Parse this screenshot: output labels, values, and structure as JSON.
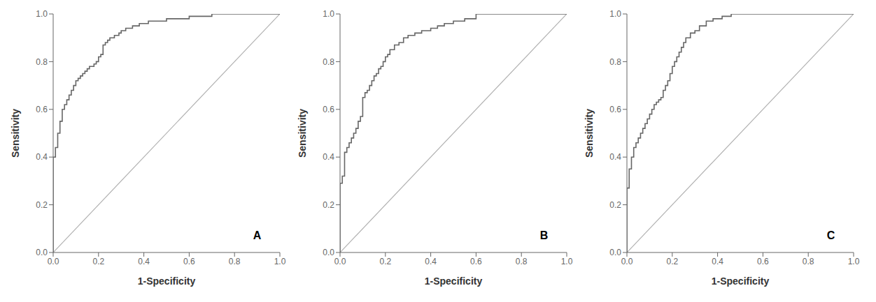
{
  "chart_data": [
    {
      "type": "line",
      "line_style": "step",
      "annotation": "A",
      "xlabel": "1-Specificity",
      "ylabel": "Sensitivity",
      "color": "#666666",
      "grid": false,
      "xlim": [
        0.0,
        1.0
      ],
      "ylim": [
        0.0,
        1.0
      ],
      "xticks": [
        {
          "value": 0.0,
          "label": "0.0"
        },
        0.2,
        0.4,
        0.6,
        0.8,
        {
          "value": 1.0,
          "label": "1.0"
        }
      ],
      "yticks": [
        {
          "value": 0.0,
          "label": "0.0"
        },
        0.2,
        0.4,
        0.6,
        0.8,
        {
          "value": 1.0,
          "label": "1.0"
        }
      ],
      "diagonal": {
        "x": [
          0,
          1
        ],
        "values": [
          0,
          1
        ],
        "color": "#b0b0b0"
      },
      "x": [
        0.0,
        0.0,
        0.0,
        0.01,
        0.01,
        0.02,
        0.02,
        0.03,
        0.03,
        0.04,
        0.04,
        0.05,
        0.06,
        0.07,
        0.08,
        0.09,
        0.1,
        0.11,
        0.12,
        0.13,
        0.14,
        0.15,
        0.16,
        0.17,
        0.18,
        0.19,
        0.2,
        0.2,
        0.21,
        0.22,
        0.22,
        0.23,
        0.24,
        0.25,
        0.26,
        0.27,
        0.28,
        0.29,
        0.3,
        0.32,
        0.35,
        0.38,
        0.42,
        0.46,
        0.5,
        0.55,
        0.6,
        0.65,
        0.7,
        0.75,
        0.8,
        0.85,
        0.88,
        1.0
      ],
      "values": [
        0.0,
        0.35,
        0.4,
        0.4,
        0.44,
        0.44,
        0.5,
        0.5,
        0.55,
        0.55,
        0.6,
        0.62,
        0.64,
        0.66,
        0.68,
        0.7,
        0.72,
        0.73,
        0.74,
        0.75,
        0.76,
        0.77,
        0.78,
        0.78,
        0.79,
        0.8,
        0.8,
        0.82,
        0.83,
        0.83,
        0.87,
        0.88,
        0.89,
        0.9,
        0.9,
        0.91,
        0.91,
        0.92,
        0.93,
        0.94,
        0.95,
        0.96,
        0.97,
        0.97,
        0.98,
        0.98,
        0.99,
        0.99,
        1.0,
        1.0,
        1.0,
        1.0,
        1.0,
        1.0
      ]
    },
    {
      "type": "line",
      "line_style": "step",
      "annotation": "B",
      "xlabel": "1-Specificity",
      "ylabel": "Sensitivity",
      "color": "#666666",
      "grid": false,
      "xlim": [
        0.0,
        1.0
      ],
      "ylim": [
        0.0,
        1.0
      ],
      "xticks": [
        {
          "value": 0.0,
          "label": "0.0"
        },
        0.2,
        0.4,
        0.6,
        0.8,
        {
          "value": 1.0,
          "label": "1.0"
        }
      ],
      "yticks": [
        {
          "value": 0.0,
          "label": "0.0"
        },
        0.2,
        0.4,
        0.6,
        0.8,
        {
          "value": 1.0,
          "label": "1.0"
        }
      ],
      "diagonal": {
        "x": [
          0,
          1
        ],
        "values": [
          0,
          1
        ],
        "color": "#b0b0b0"
      },
      "x": [
        0.0,
        0.0,
        0.0,
        0.01,
        0.01,
        0.02,
        0.02,
        0.03,
        0.04,
        0.05,
        0.06,
        0.07,
        0.08,
        0.09,
        0.1,
        0.1,
        0.11,
        0.12,
        0.13,
        0.14,
        0.15,
        0.16,
        0.17,
        0.18,
        0.19,
        0.2,
        0.21,
        0.22,
        0.24,
        0.26,
        0.28,
        0.3,
        0.33,
        0.36,
        0.4,
        0.43,
        0.46,
        0.5,
        0.55,
        0.58,
        0.6,
        0.65,
        0.7,
        0.8,
        0.9,
        1.0
      ],
      "values": [
        0.0,
        0.27,
        0.29,
        0.29,
        0.32,
        0.32,
        0.42,
        0.44,
        0.46,
        0.48,
        0.5,
        0.52,
        0.55,
        0.57,
        0.57,
        0.65,
        0.67,
        0.68,
        0.7,
        0.72,
        0.74,
        0.75,
        0.77,
        0.78,
        0.8,
        0.82,
        0.83,
        0.85,
        0.87,
        0.88,
        0.9,
        0.91,
        0.92,
        0.93,
        0.94,
        0.95,
        0.96,
        0.97,
        0.98,
        0.98,
        1.0,
        1.0,
        1.0,
        1.0,
        1.0,
        1.0
      ]
    },
    {
      "type": "line",
      "line_style": "step",
      "annotation": "C",
      "xlabel": "1-Specificity",
      "ylabel": "Sensitivity",
      "color": "#666666",
      "grid": false,
      "xlim": [
        0.0,
        1.0
      ],
      "ylim": [
        0.0,
        1.0
      ],
      "xticks": [
        {
          "value": 0.0,
          "label": "0.0"
        },
        0.2,
        0.4,
        0.6,
        0.8,
        {
          "value": 1.0,
          "label": "1.0"
        }
      ],
      "yticks": [
        {
          "value": 0.0,
          "label": "0.0"
        },
        0.2,
        0.4,
        0.6,
        0.8,
        {
          "value": 1.0,
          "label": "1.0"
        }
      ],
      "diagonal": {
        "x": [
          0,
          1
        ],
        "values": [
          0,
          1
        ],
        "color": "#b0b0b0"
      },
      "x": [
        0.0,
        0.0,
        0.0,
        0.01,
        0.01,
        0.02,
        0.02,
        0.03,
        0.03,
        0.04,
        0.05,
        0.06,
        0.07,
        0.08,
        0.09,
        0.1,
        0.11,
        0.12,
        0.13,
        0.14,
        0.15,
        0.16,
        0.17,
        0.18,
        0.19,
        0.2,
        0.21,
        0.22,
        0.23,
        0.24,
        0.25,
        0.26,
        0.28,
        0.3,
        0.32,
        0.35,
        0.38,
        0.42,
        0.46,
        0.5,
        0.55,
        0.6,
        1.0
      ],
      "values": [
        0.0,
        0.15,
        0.27,
        0.27,
        0.35,
        0.35,
        0.4,
        0.4,
        0.44,
        0.46,
        0.48,
        0.5,
        0.52,
        0.54,
        0.56,
        0.58,
        0.6,
        0.62,
        0.63,
        0.64,
        0.65,
        0.68,
        0.7,
        0.72,
        0.75,
        0.78,
        0.8,
        0.82,
        0.84,
        0.86,
        0.88,
        0.9,
        0.92,
        0.93,
        0.95,
        0.97,
        0.98,
        0.99,
        1.0,
        1.0,
        1.0,
        1.0,
        1.0
      ]
    }
  ]
}
